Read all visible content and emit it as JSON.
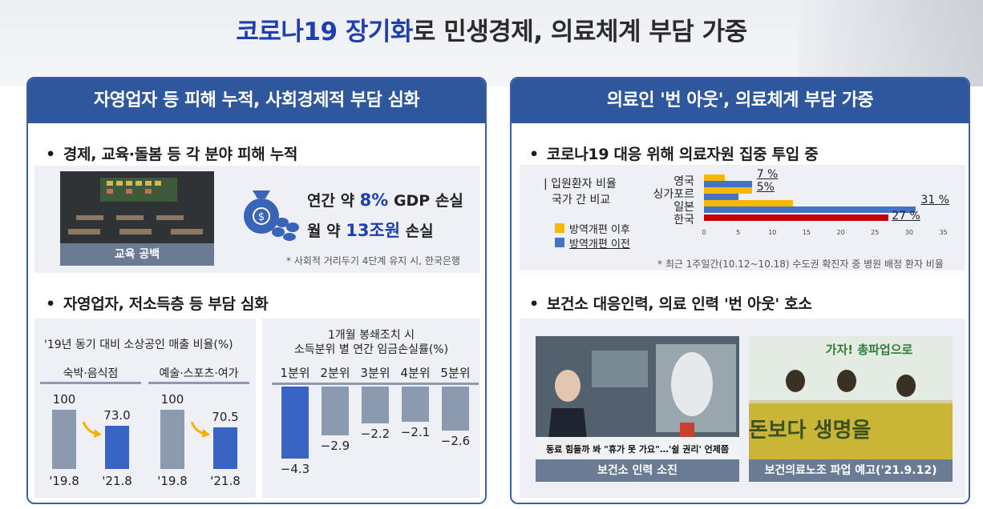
{
  "title": {
    "highlight": "코로나19 장기화",
    "rest": "로 민생경제, 의료체계 부담 가중"
  },
  "left_panel": {
    "header": "자영업자 등 피해 누적, 사회경제적 부담 심화",
    "bullet1": "경제, 교육·돌봄 등 각 분야 피해 누적",
    "photo_caption": "교육 공백",
    "loss_line1_pre": "연간 약 ",
    "loss_line1_num": "8%",
    "loss_line1_post": " GDP 손실",
    "loss_line2_pre": "월 약 ",
    "loss_line2_num": "13조원",
    "loss_line2_post": " 손실",
    "loss_note": "* 사회적 거리두기 4단계 유지 시, 한국은행",
    "bullet2": "자영업자, 저소득층 등 부담 심화",
    "sales_chart": {
      "title": "'19년 동기 대비 소상공인 매출 비율(%)",
      "groups": [
        {
          "name": "숙박·음식점",
          "values": [
            100,
            73.0
          ],
          "labels": [
            "100",
            "73.0"
          ],
          "x": [
            "'19.8",
            "'21.8"
          ]
        },
        {
          "name": "예술·스포츠·여가",
          "values": [
            100,
            70.5
          ],
          "labels": [
            "100",
            "70.5"
          ],
          "x": [
            "'19.8",
            "'21.8"
          ]
        }
      ]
    },
    "income_chart": {
      "title_line1": "1개월 봉쇄조치 시",
      "title_line2": "소득분위 별 연간 임금손실률(%)",
      "categories": [
        "1분위",
        "2분위",
        "3분위",
        "4분위",
        "5분위"
      ],
      "values": [
        -4.3,
        -2.9,
        -2.2,
        -2.1,
        -2.6
      ],
      "labels": [
        "−4.3",
        "−2.9",
        "−2.2",
        "−2.1",
        "−2.6"
      ]
    }
  },
  "right_panel": {
    "header": "의료인 '번 아웃', 의료체계 부담 가중",
    "bullet1": "코로나19 대응 위해 의료자원 집중 투입 중",
    "chart_title_line1": "| 입원환자 비율",
    "chart_title_line2": "국가 간 비교",
    "legend_after": "방역개편 이후",
    "legend_before": "방역개편 이전",
    "note": "* 최근 1주일간(10.12~10.18) 수도권 확진자 중 병원 배정 환자 비율",
    "bullet2": "보건소 대응인력, 의료 인력 '번 아웃' 호소",
    "photo1_caption": "보건소 인력 소진",
    "photo1_subtitle": "동료 힘들까 봐 \"휴가 못 가요\"…'쉴 권리' 언제쯤",
    "photo2_caption": "보건의료노조 파업 예고('21.9.12)",
    "photo2_banner": "가자! 총파업으로",
    "photo2_sign": "돈보다 생명을"
  },
  "chart_data": [
    {
      "type": "bar",
      "title": "'19년 동기 대비 소상공인 매출 비율(%)",
      "categories": [
        "'19.8",
        "'21.8"
      ],
      "series": [
        {
          "name": "숙박·음식점",
          "values": [
            100,
            73.0
          ]
        },
        {
          "name": "예술·스포츠·여가",
          "values": [
            100,
            70.5
          ]
        }
      ]
    },
    {
      "type": "bar",
      "title": "1개월 봉쇄조치 시 소득분위 별 연간 임금손실률(%)",
      "categories": [
        "1분위",
        "2분위",
        "3분위",
        "4분위",
        "5분위"
      ],
      "values": [
        -4.3,
        -2.9,
        -2.2,
        -2.1,
        -2.6
      ]
    },
    {
      "type": "bar",
      "title": "입원환자 비율 국가 간 비교",
      "categories": [
        "영국",
        "싱가포르",
        "일본",
        "한국"
      ],
      "series": [
        {
          "name": "방역개편 이후",
          "values": [
            3,
            7,
            13,
            null
          ]
        },
        {
          "name": "방역개편 이전",
          "values": [
            7,
            5,
            31,
            null
          ]
        }
      ],
      "korea_value": 27,
      "value_labels": [
        "7 %",
        "5%",
        "31 %",
        "27 %"
      ],
      "x_ticks": [
        "0",
        "5",
        "10",
        "15",
        "20",
        "25",
        "30",
        "35"
      ],
      "xlim": [
        0,
        35
      ],
      "colors": {
        "after": "#f6b800",
        "before": "#4472c4",
        "korea": "#c00000"
      }
    }
  ]
}
